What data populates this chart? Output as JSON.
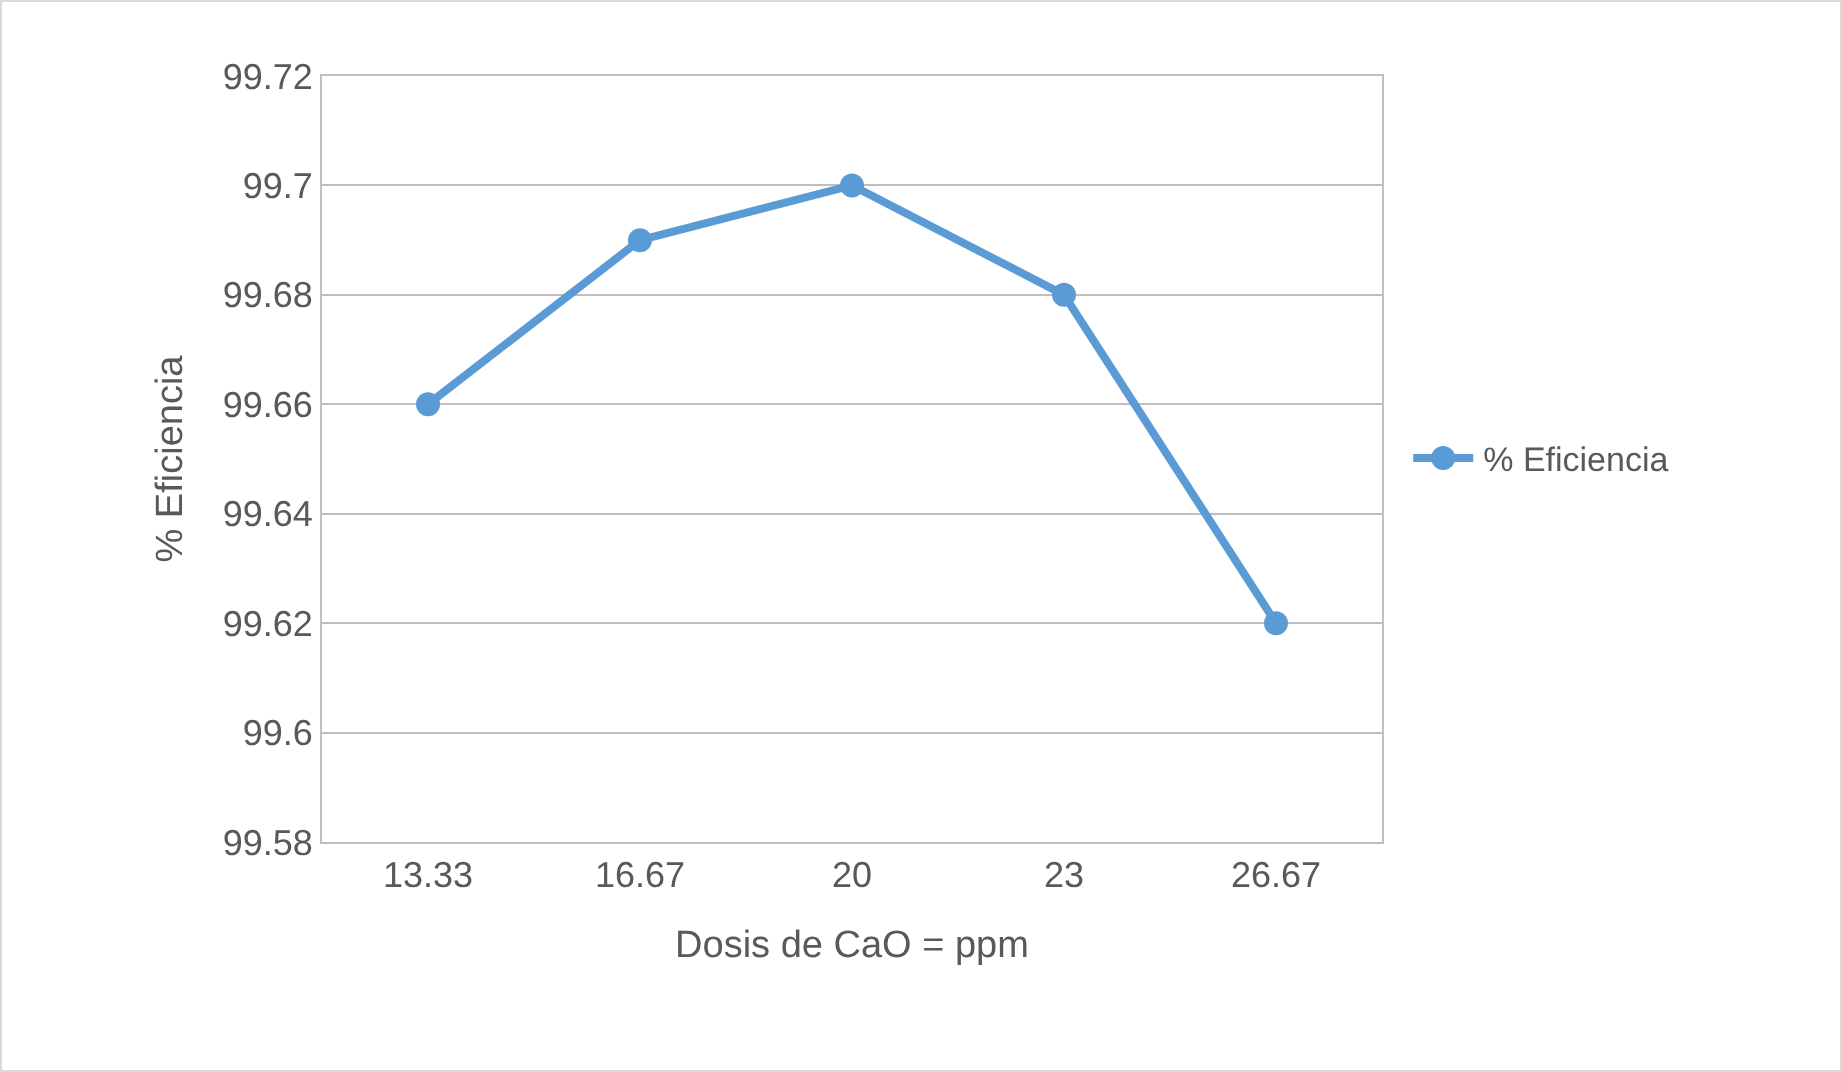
{
  "chart_data": {
    "type": "line",
    "xlabel": "Dosis de CaO = ppm",
    "ylabel": "% Eficiencia",
    "categories": [
      "13.33",
      "16.67",
      "20",
      "23",
      "26.67"
    ],
    "series": [
      {
        "name": "% Eficiencia",
        "color": "#5b9bd5",
        "values": [
          99.66,
          99.69,
          99.7,
          99.68,
          99.62
        ]
      }
    ],
    "ylim": [
      99.58,
      99.72
    ],
    "yticks": [
      99.58,
      99.6,
      99.62,
      99.64,
      99.66,
      99.68,
      99.7,
      99.72
    ],
    "grid": "y",
    "legend": "right",
    "marker": "circle",
    "line_style": "solid"
  }
}
